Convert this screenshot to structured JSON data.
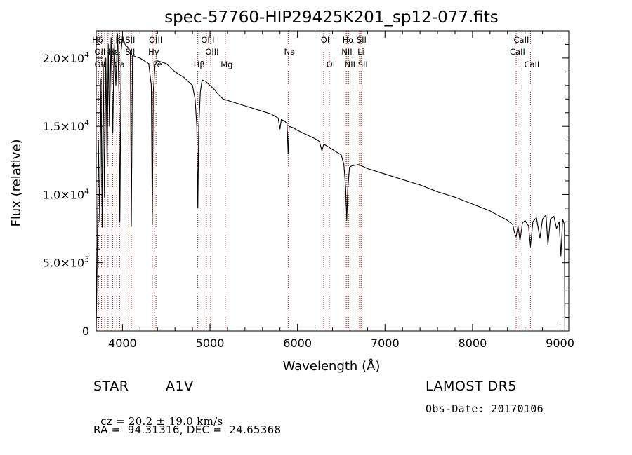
{
  "colors": {
    "background": "#ffffff",
    "spectrum": "#000000",
    "line_marker": "#b22222"
  },
  "chart_data": {
    "type": "line",
    "title": "spec-57760-HIP29425K201_sp12-077.fits",
    "xlabel": "Wavelength (Å)",
    "ylabel": "Flux (relative)",
    "xlim": [
      3700,
      9100
    ],
    "ylim": [
      0,
      22000
    ],
    "x_ticks": [
      4000,
      5000,
      6000,
      7000,
      8000,
      9000
    ],
    "x_tick_labels": [
      "4000",
      "5000",
      "6000",
      "7000",
      "8000",
      "9000"
    ],
    "y_ticks": [
      0,
      5000,
      10000,
      15000,
      20000
    ],
    "y_tick_labels": [
      {
        "mantissa": "0",
        "exp": ""
      },
      {
        "mantissa": "5.0×10",
        "exp": "3"
      },
      {
        "mantissa": "1.0×10",
        "exp": "4"
      },
      {
        "mantissa": "1.5×10",
        "exp": "4"
      },
      {
        "mantissa": "2.0×10",
        "exp": "4"
      }
    ],
    "grid": false,
    "series": [
      {
        "points": [
          [
            3700,
            0
          ],
          [
            3712,
            6000
          ],
          [
            3725,
            14000
          ],
          [
            3740,
            8000
          ],
          [
            3755,
            18500
          ],
          [
            3768,
            7600
          ],
          [
            3780,
            19500
          ],
          [
            3795,
            9800
          ],
          [
            3810,
            20000
          ],
          [
            3825,
            12000
          ],
          [
            3838,
            21000
          ],
          [
            3852,
            15000
          ],
          [
            3870,
            21500
          ],
          [
            3889,
            14500
          ],
          [
            3905,
            21200
          ],
          [
            3925,
            18000
          ],
          [
            3945,
            21800
          ],
          [
            3960,
            17500
          ],
          [
            3970,
            8000
          ],
          [
            3985,
            20500
          ],
          [
            4000,
            21600
          ],
          [
            4030,
            21000
          ],
          [
            4060,
            20800
          ],
          [
            4090,
            20500
          ],
          [
            4101,
            7700
          ],
          [
            4115,
            20200
          ],
          [
            4150,
            20100
          ],
          [
            4200,
            20000
          ],
          [
            4250,
            19800
          ],
          [
            4300,
            19600
          ],
          [
            4330,
            18000
          ],
          [
            4341,
            7800
          ],
          [
            4352,
            17500
          ],
          [
            4372,
            19500
          ],
          [
            4400,
            19800
          ],
          [
            4450,
            19700
          ],
          [
            4500,
            19600
          ],
          [
            4550,
            19300
          ],
          [
            4600,
            19000
          ],
          [
            4650,
            18800
          ],
          [
            4700,
            18600
          ],
          [
            4750,
            18300
          ],
          [
            4800,
            18000
          ],
          [
            4830,
            17000
          ],
          [
            4850,
            15000
          ],
          [
            4861,
            9000
          ],
          [
            4872,
            15000
          ],
          [
            4890,
            17500
          ],
          [
            4910,
            18400
          ],
          [
            4950,
            18300
          ],
          [
            5000,
            18000
          ],
          [
            5050,
            17700
          ],
          [
            5100,
            17300
          ],
          [
            5150,
            17000
          ],
          [
            5200,
            16900
          ],
          [
            5300,
            16700
          ],
          [
            5400,
            16500
          ],
          [
            5500,
            16300
          ],
          [
            5600,
            16100
          ],
          [
            5700,
            15900
          ],
          [
            5780,
            15600
          ],
          [
            5800,
            14800
          ],
          [
            5815,
            15500
          ],
          [
            5850,
            15400
          ],
          [
            5880,
            15200
          ],
          [
            5893,
            13000
          ],
          [
            5905,
            15000
          ],
          [
            5950,
            14900
          ],
          [
            6000,
            14700
          ],
          [
            6100,
            14400
          ],
          [
            6200,
            14100
          ],
          [
            6250,
            13900
          ],
          [
            6280,
            13200
          ],
          [
            6300,
            13700
          ],
          [
            6350,
            13500
          ],
          [
            6400,
            13300
          ],
          [
            6450,
            13100
          ],
          [
            6500,
            12900
          ],
          [
            6530,
            12200
          ],
          [
            6550,
            10500
          ],
          [
            6563,
            8100
          ],
          [
            6575,
            10500
          ],
          [
            6595,
            12000
          ],
          [
            6620,
            12100
          ],
          [
            6700,
            12200
          ],
          [
            6800,
            11900
          ],
          [
            7000,
            11500
          ],
          [
            7200,
            11100
          ],
          [
            7400,
            10700
          ],
          [
            7600,
            10200
          ],
          [
            7800,
            9800
          ],
          [
            8000,
            9300
          ],
          [
            8200,
            8800
          ],
          [
            8300,
            8450
          ],
          [
            8400,
            8100
          ],
          [
            8460,
            7800
          ],
          [
            8480,
            7200
          ],
          [
            8498,
            6900
          ],
          [
            8520,
            7700
          ],
          [
            8542,
            6600
          ],
          [
            8570,
            7900
          ],
          [
            8600,
            8100
          ],
          [
            8640,
            7700
          ],
          [
            8662,
            6200
          ],
          [
            8690,
            8000
          ],
          [
            8730,
            8300
          ],
          [
            8770,
            6800
          ],
          [
            8800,
            8200
          ],
          [
            8840,
            8500
          ],
          [
            8862,
            6300
          ],
          [
            8890,
            8200
          ],
          [
            8930,
            8400
          ],
          [
            8960,
            7500
          ],
          [
            8990,
            8000
          ],
          [
            9010,
            5500
          ],
          [
            9030,
            8200
          ],
          [
            9050,
            7800
          ],
          [
            9055,
            0
          ]
        ]
      }
    ],
    "annotations": [
      {
        "label": "Hδ",
        "wavelength": 3700,
        "row": 0
      },
      {
        "label": "OII",
        "wavelength": 3727,
        "row": 1
      },
      {
        "label": "OII",
        "wavelength": 3727,
        "row": 2
      },
      {
        "label": "K",
        "wavelength": 3934,
        "row": 0
      },
      {
        "label": "H",
        "wavelength": 3968,
        "row": 0
      },
      {
        "label": "Hε",
        "wavelength": 3880,
        "row": 1
      },
      {
        "label": "SII",
        "wavelength": 4072,
        "row": 0
      },
      {
        "label": "SII",
        "wavelength": 4072,
        "row": 1
      },
      {
        "label": "Ca",
        "wavelength": 3950,
        "row": 2
      },
      {
        "label": "OIII",
        "wavelength": 4363,
        "row": 0
      },
      {
        "label": "Hγ",
        "wavelength": 4341,
        "row": 1
      },
      {
        "label": "Fe",
        "wavelength": 4383,
        "row": 2
      },
      {
        "label": "OIII",
        "wavelength": 4959,
        "row": 0
      },
      {
        "label": "OIII",
        "wavelength": 5007,
        "row": 1
      },
      {
        "label": "Hβ",
        "wavelength": 4861,
        "row": 2
      },
      {
        "label": "Mg",
        "wavelength": 5175,
        "row": 2
      },
      {
        "label": "Na",
        "wavelength": 5893,
        "row": 1
      },
      {
        "label": "OI",
        "wavelength": 6300,
        "row": 0
      },
      {
        "label": "OI",
        "wavelength": 6363,
        "row": 2
      },
      {
        "label": "Hα",
        "wavelength": 6563,
        "row": 0
      },
      {
        "label": "NII",
        "wavelength": 6548,
        "row": 1
      },
      {
        "label": "NII",
        "wavelength": 6583,
        "row": 2
      },
      {
        "label": "SII",
        "wavelength": 6716,
        "row": 0
      },
      {
        "label": "Li",
        "wavelength": 6708,
        "row": 1
      },
      {
        "label": "SII",
        "wavelength": 6731,
        "row": 2
      },
      {
        "label": "CaII",
        "wavelength": 8542,
        "row": 0
      },
      {
        "label": "CaII",
        "wavelength": 8498,
        "row": 1
      },
      {
        "label": "CaII",
        "wavelength": 8662,
        "row": 2
      }
    ],
    "line_markers": [
      3727,
      3760,
      3797,
      3835,
      3889,
      3934,
      3968,
      4072,
      4101,
      4341,
      4363,
      4383,
      4861,
      4959,
      5007,
      5175,
      5893,
      6300,
      6363,
      6548,
      6563,
      6583,
      6708,
      6716,
      6731,
      8498,
      8542,
      8662
    ]
  },
  "info": {
    "object_class": "STAR",
    "subclass": "A1V",
    "survey": "LAMOST DR5",
    "cz_label": "cz = ",
    "cz_value": "20.2",
    "cz_pm": " ± ",
    "cz_error": "19.0",
    "cz_unit": " km/s",
    "obs_date": "Obs-Date: 20170106",
    "coords": "RA =  94.31316, DEC =  24.65368"
  }
}
